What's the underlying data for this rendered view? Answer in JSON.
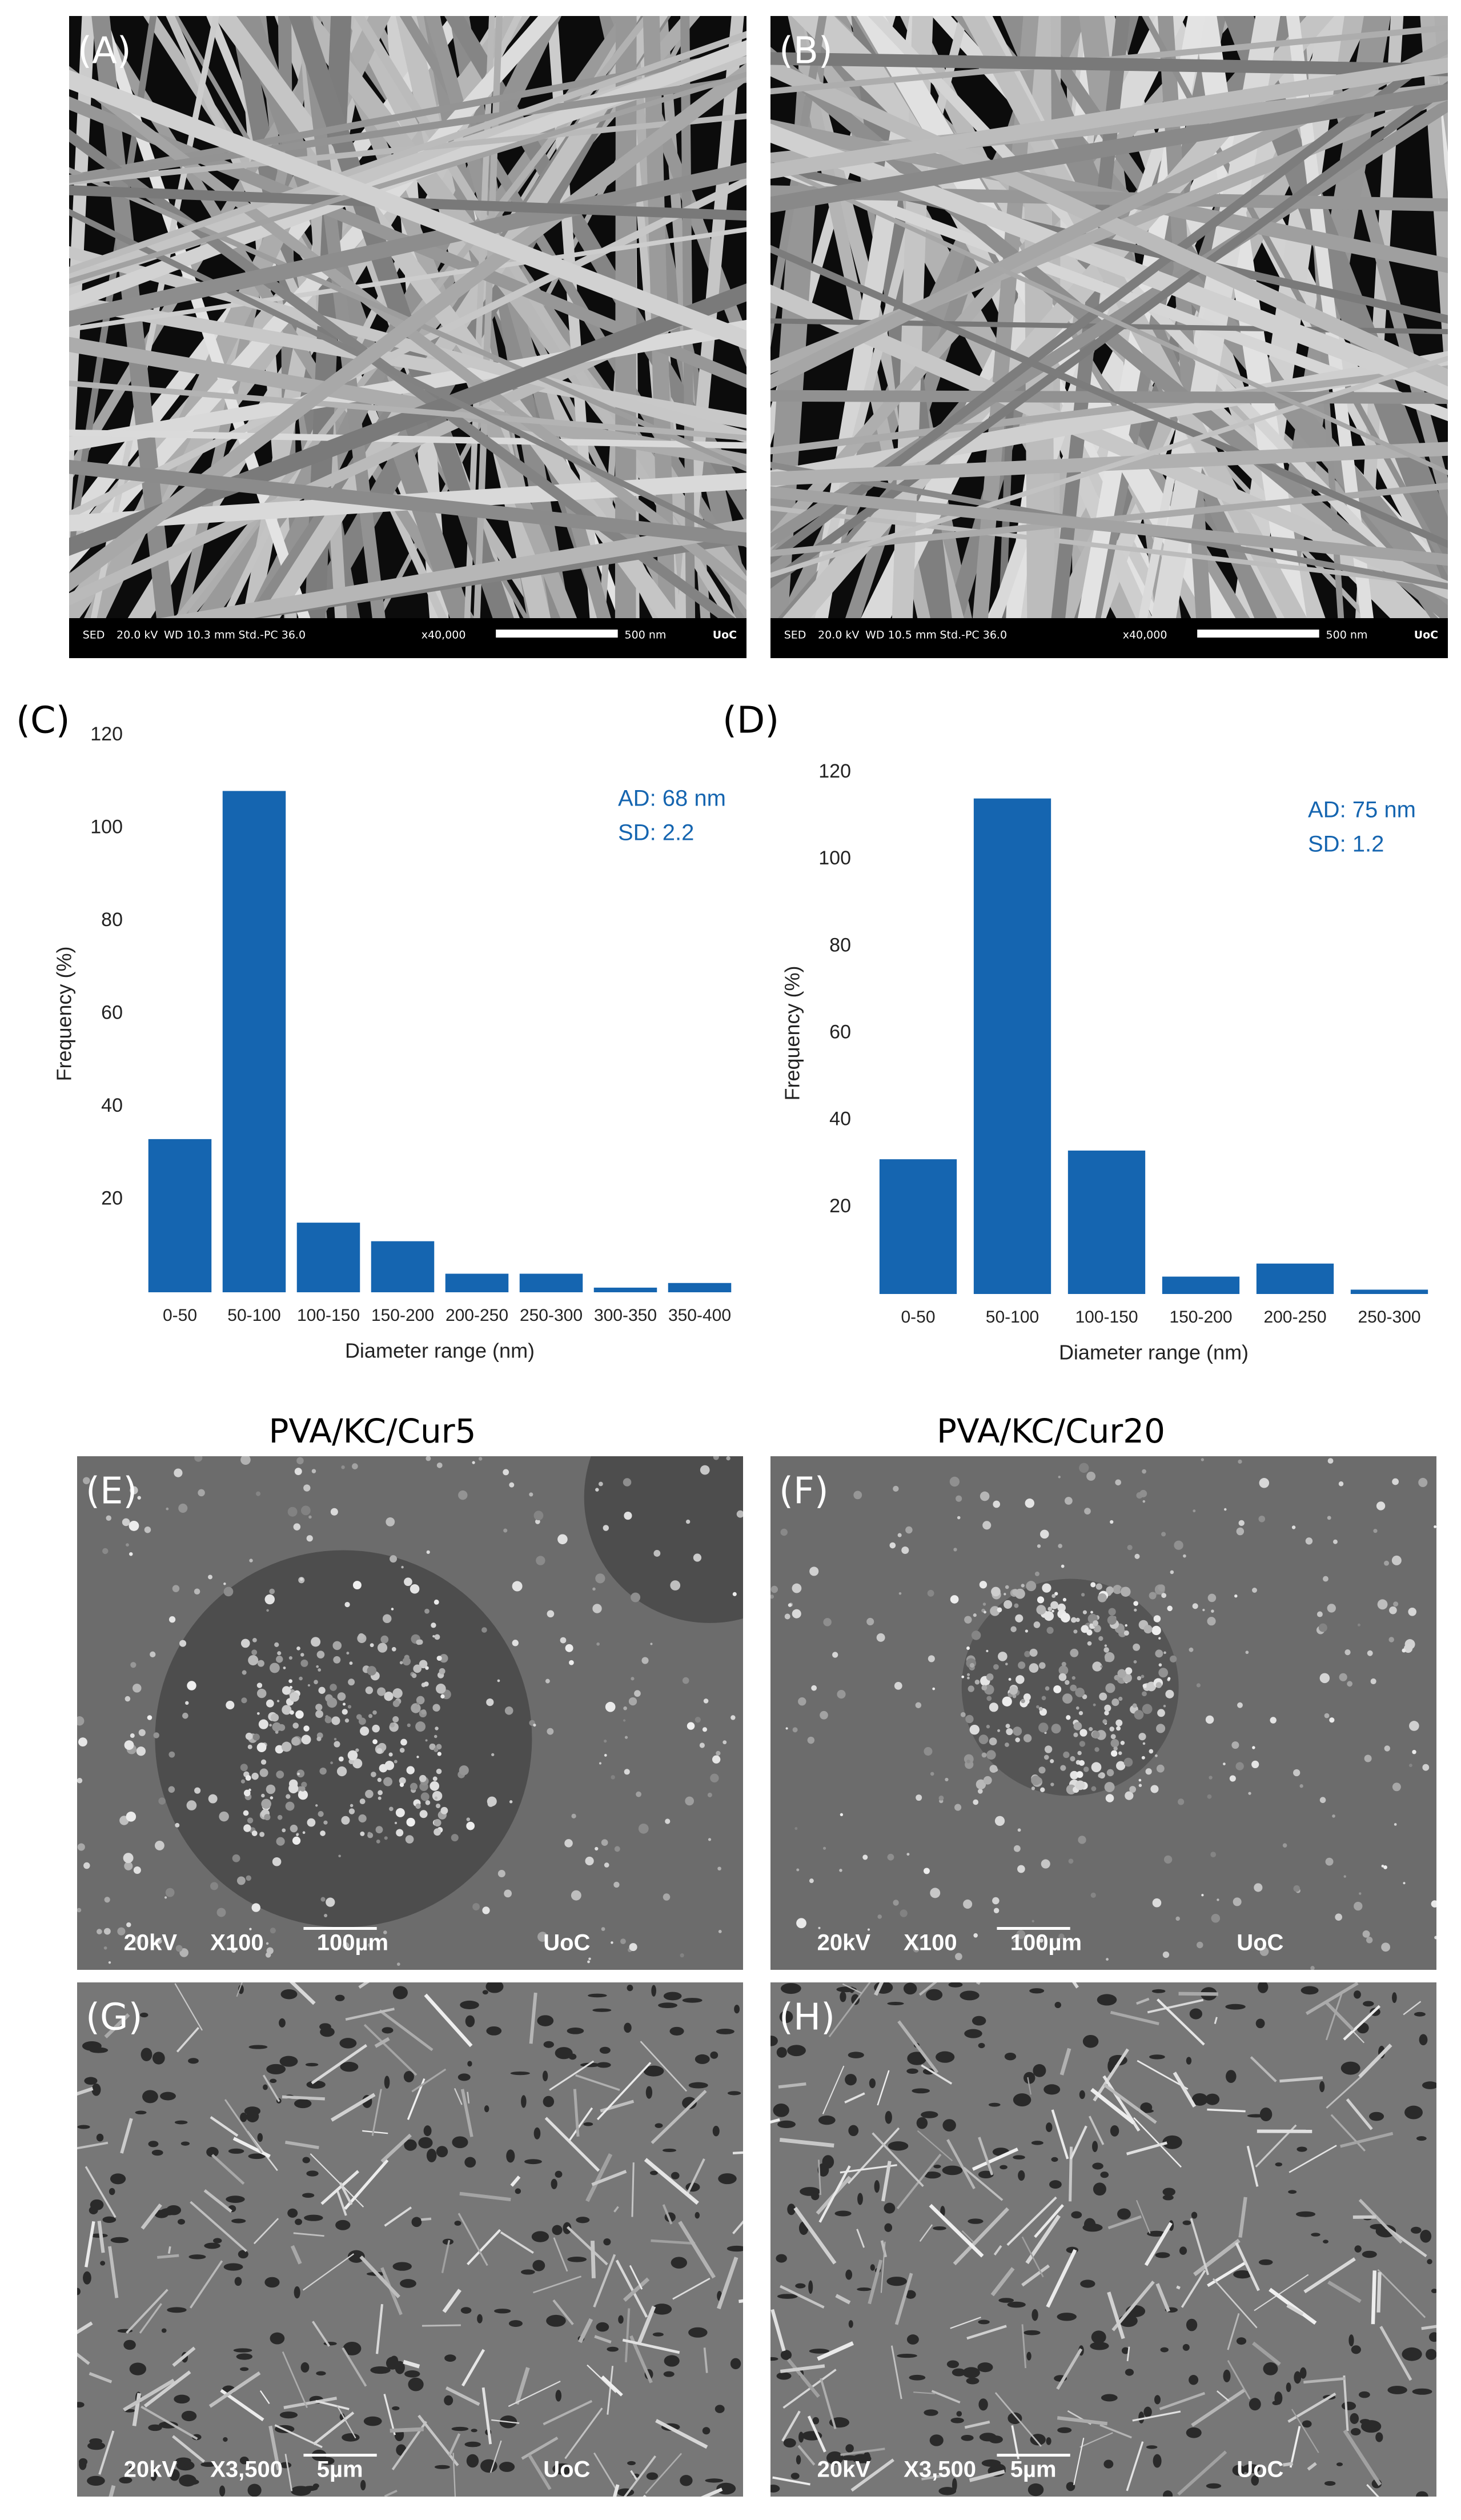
{
  "images": [
    {
      "label": "(A)",
      "info": [
        "SED",
        "20.0 kV",
        "WD 10.3 mm",
        "Std.-PC 36.0",
        "x40,000",
        "500 nm",
        "UoC"
      ]
    },
    {
      "label": "(B)",
      "info": [
        "SED",
        "20.0 kV",
        "WD 10.5 mm",
        "Std.-PC 36.0",
        "x40,000",
        "500 nm",
        "UoC"
      ]
    },
    {
      "label": "(E)",
      "info": [
        "20kV",
        "X100",
        "100µm",
        "UoC"
      ]
    },
    {
      "label": "(F)",
      "info": [
        "20kV",
        "X100",
        "100µm",
        "UoC"
      ]
    },
    {
      "label": "(G)",
      "info": [
        "20kV",
        "X3,500",
        "5µm",
        "UoC"
      ]
    },
    {
      "label": "(H)",
      "info": [
        "20kV",
        "X3,500",
        "5µm",
        "UoC"
      ]
    }
  ],
  "sample_titles": [
    "PVA/KC/Cur5",
    "PVA/KC/Cur20"
  ],
  "chart_data": [
    {
      "type": "bar",
      "label": "(C)",
      "xlabel": "Diameter range (nm)",
      "ylabel": "Frequency (%)",
      "categories": [
        "0-50",
        "50-100",
        "100-150",
        "150-200",
        "200-250",
        "250-300",
        "300-350",
        "350-400"
      ],
      "values": [
        33,
        108,
        15,
        11,
        4,
        4,
        1,
        2
      ],
      "color": "#1565b0",
      "ylim": [
        0,
        120
      ],
      "yticks": [
        20,
        40,
        60,
        80,
        100,
        120
      ],
      "annotations": [
        "AD: 68 nm",
        "SD:  2.2"
      ]
    },
    {
      "type": "bar",
      "label": "(D)",
      "xlabel": "Diameter range (nm)",
      "ylabel": "Frequency (%)",
      "categories": [
        "0-50",
        "50-100",
        "100-150",
        "150-200",
        "200-250",
        "250-300"
      ],
      "values": [
        31,
        114,
        33,
        4,
        7,
        1
      ],
      "color": "#1565b0",
      "ylim": [
        0,
        120
      ],
      "yticks": [
        20,
        40,
        60,
        80,
        100,
        120
      ],
      "annotations": [
        "AD: 75 nm",
        "SD: 1.2"
      ]
    }
  ]
}
